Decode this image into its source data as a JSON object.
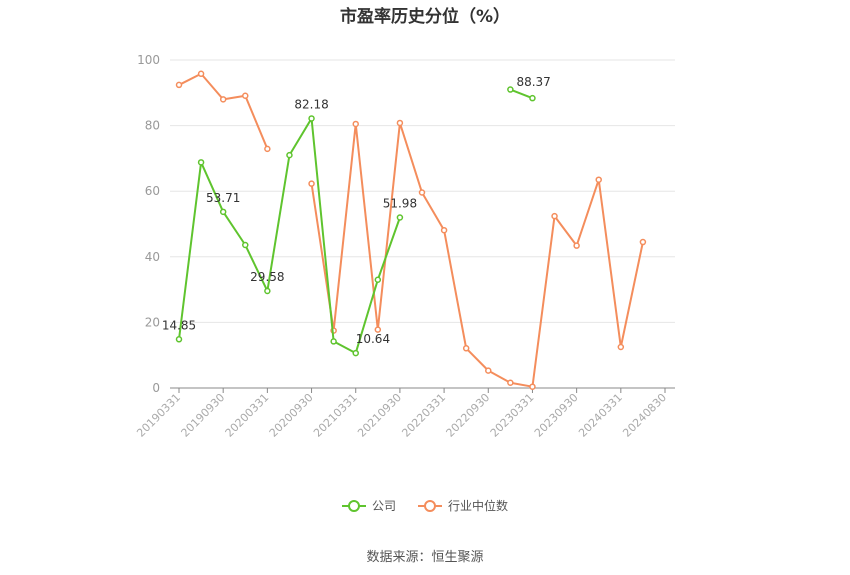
{
  "chart_data": {
    "type": "line",
    "title": "市盈率历史分位（%）",
    "source": "数据来源：恒生聚源",
    "x": [
      "20190331",
      "20190630",
      "20190930",
      "20191231",
      "20200331",
      "20200630",
      "20200930",
      "20201231",
      "20210331",
      "20210630",
      "20210930",
      "20211231",
      "20220331",
      "20220630",
      "20220930",
      "20221231",
      "20230331",
      "20230630",
      "20230930",
      "20231231",
      "20240331",
      "20240630",
      "20240830"
    ],
    "x_tick_labels": [
      "20190331",
      "20190930",
      "20200331",
      "20200930",
      "20210331",
      "20210930",
      "20220331",
      "20220930",
      "20230331",
      "20230930",
      "20240331",
      "20240830"
    ],
    "ylim": [
      0,
      100
    ],
    "y_ticks": [
      0,
      20,
      40,
      60,
      80,
      100
    ],
    "grid": true,
    "legend_position": "bottom",
    "series": [
      {
        "name": "公司",
        "color": "#5fc42e",
        "values": [
          14.85,
          68.8,
          53.71,
          43.6,
          29.58,
          71.0,
          82.18,
          14.2,
          10.64,
          33.0,
          51.98,
          null,
          null,
          null,
          null,
          91.0,
          88.37,
          null,
          null,
          null,
          null,
          null,
          null
        ],
        "labels": {
          "0": "14.85",
          "2": "53.71",
          "4": "29.58",
          "6": "82.18",
          "8": "10.64",
          "10": "51.98",
          "16": "88.37"
        }
      },
      {
        "name": "行业中位数",
        "color": "#f48d5c",
        "values": [
          92.4,
          95.8,
          88.0,
          89.1,
          72.9,
          null,
          62.3,
          17.5,
          80.5,
          17.8,
          80.8,
          59.6,
          48.1,
          12.1,
          5.3,
          1.6,
          0.4,
          52.4,
          43.4,
          63.5,
          12.5,
          44.5,
          null
        ]
      }
    ]
  }
}
